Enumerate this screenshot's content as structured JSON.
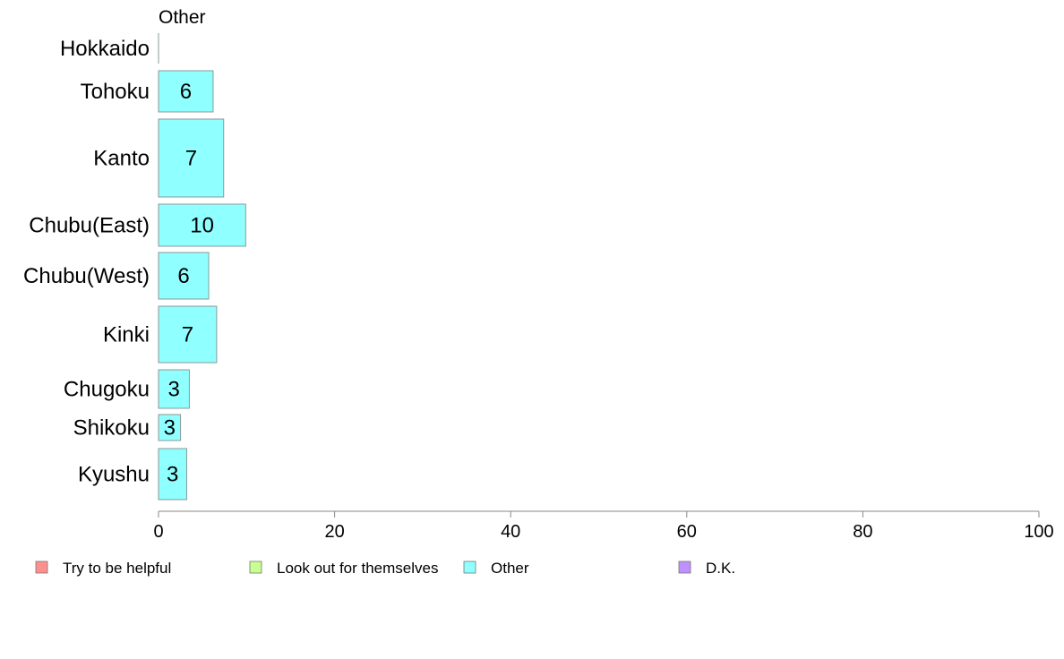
{
  "chart_data": {
    "type": "bar",
    "orientation": "horizontal",
    "panel_title": "Other",
    "categories": [
      "Hokkaido",
      "Tohoku",
      "Kanto",
      "Chubu(East)",
      "Chubu(West)",
      "Kinki",
      "Chugoku",
      "Shikoku",
      "Kyushu"
    ],
    "values": [
      0,
      6.2,
      7.4,
      9.9,
      5.7,
      6.6,
      3.5,
      2.5,
      3.2
    ],
    "value_labels": [
      "",
      "6",
      "7",
      "10",
      "6",
      "7",
      "3",
      "3",
      "3"
    ],
    "xlim": [
      0,
      100
    ],
    "x_ticks": [
      "0",
      "20",
      "40",
      "60",
      "80",
      "100"
    ],
    "grid": false,
    "bar_color": "#8fffff",
    "bar_stroke": "#8a9a9a",
    "legend": {
      "placement": "bottom",
      "entries": [
        {
          "label": "Try to be helpful",
          "color": "#ff8f8f"
        },
        {
          "label": "Look out for themselves",
          "color": "#c8ff8f"
        },
        {
          "label": "Other",
          "color": "#8fffff"
        },
        {
          "label": "D.K.",
          "color": "#bf8fff"
        }
      ]
    }
  }
}
